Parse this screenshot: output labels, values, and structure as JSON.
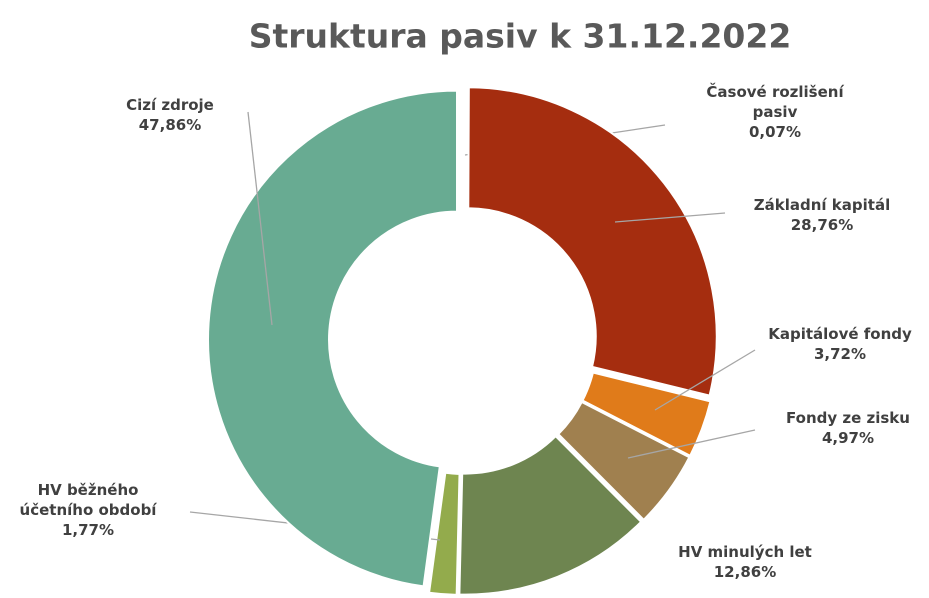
{
  "chart_data": {
    "type": "donut",
    "title": "Struktura pasiv k 31.12.2022",
    "categories": [
      "Časové rozlišení pasiv",
      "Základní kapitál",
      "Kapitálové fondy",
      "Fondy ze zisku",
      "HV minulých let",
      "HV běžného účetního období",
      "Cizí zdroje"
    ],
    "values": [
      0.07,
      28.76,
      3.72,
      4.97,
      12.86,
      1.77,
      47.86
    ],
    "value_labels": [
      "0,07%",
      "28,76%",
      "3,72%",
      "4,97%",
      "12,86%",
      "1,77%",
      "47,86%"
    ],
    "colors": [
      "#7a2a10",
      "#a52d0f",
      "#e07b1a",
      "#a0804f",
      "#6e8550",
      "#93ab4c",
      "#68ab92"
    ]
  }
}
